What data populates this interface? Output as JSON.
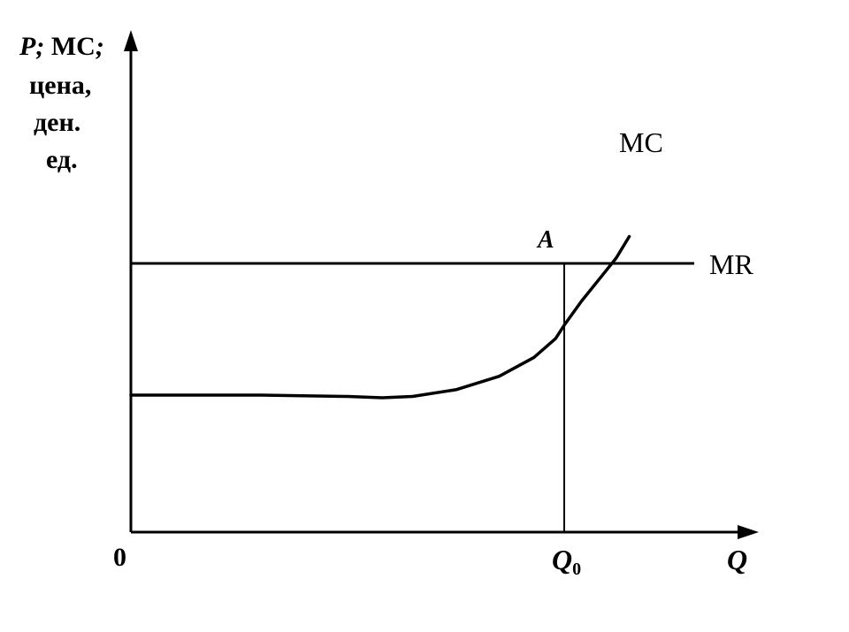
{
  "chart_data": {
    "type": "line",
    "ylabel_lines": [
      "P; MC;",
      "цена,",
      "ден.",
      "ед."
    ],
    "ylabel_parts": {
      "p": "P",
      "sep1": ";",
      "mc": " MC",
      "sep2": ";"
    },
    "xlabel": "Q",
    "origin_label": "0",
    "q0_label": {
      "main": "Q",
      "sub": "0"
    },
    "point_label": "A",
    "xlim": [
      0,
      1.45
    ],
    "ylim": [
      0,
      1.0
    ],
    "series": [
      {
        "name": "MC",
        "points": [
          [
            0,
            0.51
          ],
          [
            0.3,
            0.51
          ],
          [
            0.5,
            0.505
          ],
          [
            0.58,
            0.5
          ],
          [
            0.65,
            0.505
          ],
          [
            0.75,
            0.53
          ],
          [
            0.85,
            0.58
          ],
          [
            0.93,
            0.65
          ],
          [
            0.98,
            0.72
          ],
          [
            1.0,
            0.77
          ],
          [
            1.04,
            0.86
          ],
          [
            1.09,
            0.96
          ],
          [
            1.12,
            1.02
          ],
          [
            1.15,
            1.1
          ]
        ]
      },
      {
        "name": "MR",
        "points": [
          [
            0,
            1.0
          ],
          [
            1.3,
            1.0
          ]
        ]
      }
    ],
    "markers": {
      "q0_x": 1.0,
      "a_point": [
        1.0,
        1.0
      ]
    },
    "colors": {
      "line": "#000000",
      "background": "#ffffff"
    }
  }
}
